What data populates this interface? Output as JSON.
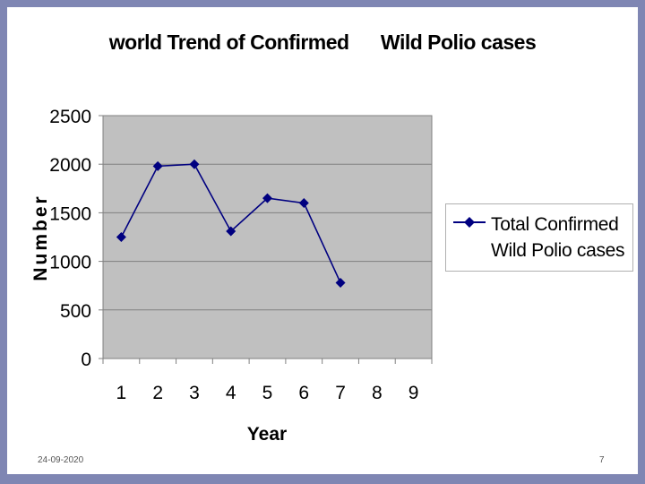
{
  "slide": {
    "title": "world Trend of Confirmed      Wild Polio cases",
    "footer_date": "24-09-2020",
    "page_number": "7"
  },
  "colors": {
    "background_frame": "#7f86b3",
    "plot_area": "#c0c0c0",
    "series_line": "#000080"
  },
  "chart_data": {
    "type": "line",
    "title": "world Trend of Confirmed      Wild Polio cases",
    "xlabel": "Year",
    "ylabel": "Number",
    "x_ticks": [
      "1",
      "2",
      "3",
      "4",
      "5",
      "6",
      "7",
      "8",
      "9"
    ],
    "y_ticks": [
      "0",
      "500",
      "1000",
      "1500",
      "2000",
      "2500"
    ],
    "ylim": [
      0,
      2500
    ],
    "grid": true,
    "legend_position": "right",
    "series": [
      {
        "name": "Total Confirmed Wild Polio cases",
        "marker": "diamond",
        "x": [
          1,
          2,
          3,
          4,
          5,
          6,
          7
        ],
        "values": [
          1250,
          1980,
          2000,
          1310,
          1650,
          1600,
          780
        ]
      }
    ]
  }
}
